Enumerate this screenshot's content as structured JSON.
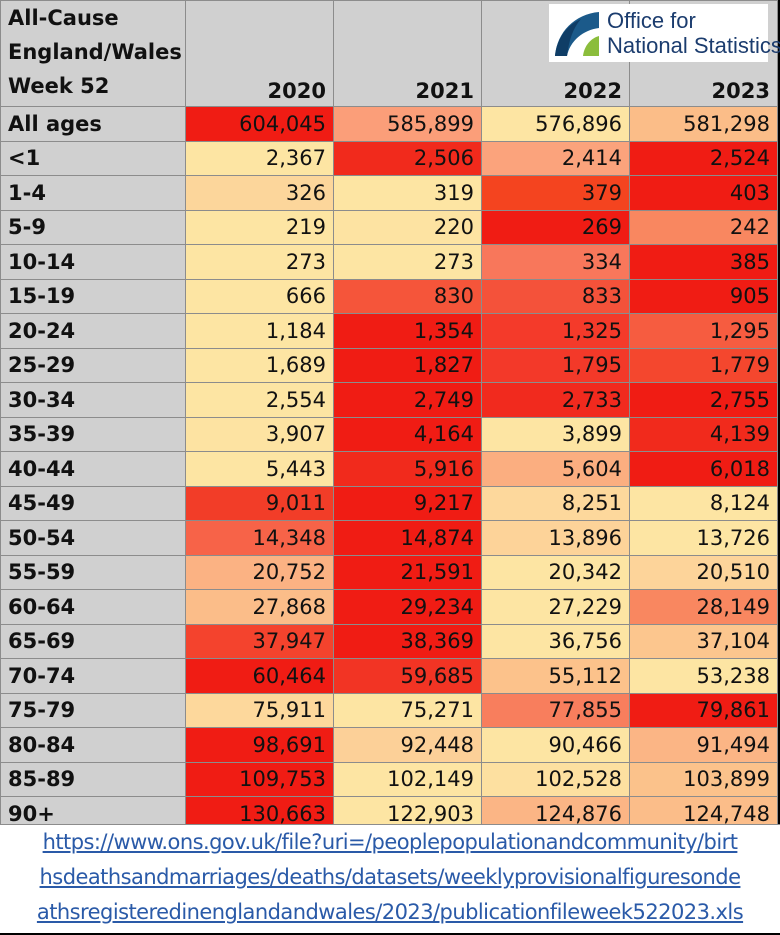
{
  "title_lines": [
    "All-Cause",
    "England/Wales",
    "Week 52"
  ],
  "logo": {
    "line1": "Office for",
    "line2": "National Statistics"
  },
  "chart_data": {
    "type": "table",
    "columns": [
      "2020",
      "2021",
      "2022",
      "2023"
    ],
    "rows": [
      {
        "label": "All ages",
        "values": [
          "604,045",
          "585,899",
          "576,896",
          "581,298"
        ],
        "colors": [
          "#f01c14",
          "#fb9e79",
          "#fde5a3",
          "#fbbd88"
        ]
      },
      {
        "label": "<1",
        "values": [
          "2,367",
          "2,506",
          "2,414",
          "2,524"
        ],
        "colors": [
          "#fde5a3",
          "#f12a1c",
          "#fba37c",
          "#f01c14"
        ]
      },
      {
        "label": "1-4",
        "values": [
          "326",
          "319",
          "379",
          "403"
        ],
        "colors": [
          "#fcd69b",
          "#fde5a3",
          "#f4441f",
          "#f01c14"
        ]
      },
      {
        "label": "5-9",
        "values": [
          "219",
          "220",
          "269",
          "242"
        ],
        "colors": [
          "#fde5a3",
          "#fde3a2",
          "#f01c14",
          "#f98760"
        ]
      },
      {
        "label": "10-14",
        "values": [
          "273",
          "273",
          "334",
          "385"
        ],
        "colors": [
          "#fde5a3",
          "#fde5a3",
          "#f8775b",
          "#f01c14"
        ]
      },
      {
        "label": "15-19",
        "values": [
          "666",
          "830",
          "833",
          "905"
        ],
        "colors": [
          "#fde5a3",
          "#f5553a",
          "#f4523a",
          "#f01c14"
        ]
      },
      {
        "label": "20-24",
        "values": [
          "1,184",
          "1,354",
          "1,325",
          "1,295"
        ],
        "colors": [
          "#fde5a3",
          "#f01c14",
          "#f43a2a",
          "#f65c40"
        ]
      },
      {
        "label": "25-29",
        "values": [
          "1,689",
          "1,827",
          "1,795",
          "1,779"
        ],
        "colors": [
          "#fde5a3",
          "#f01c14",
          "#f33929",
          "#f4472e"
        ]
      },
      {
        "label": "30-34",
        "values": [
          "2,554",
          "2,749",
          "2,733",
          "2,755"
        ],
        "colors": [
          "#fde5a3",
          "#f01c14",
          "#f12a1e",
          "#f01c14"
        ]
      },
      {
        "label": "35-39",
        "values": [
          "3,907",
          "4,164",
          "3,899",
          "4,139"
        ],
        "colors": [
          "#fde3a2",
          "#f01c14",
          "#fde5a3",
          "#f12a1c"
        ]
      },
      {
        "label": "40-44",
        "values": [
          "5,443",
          "5,916",
          "5,604",
          "6,018"
        ],
        "colors": [
          "#fde5a3",
          "#f12a1c",
          "#fbae80",
          "#f01c14"
        ]
      },
      {
        "label": "45-49",
        "values": [
          "9,011",
          "9,217",
          "8,251",
          "8,124"
        ],
        "colors": [
          "#f23d28",
          "#f01c14",
          "#fdd89c",
          "#fde5a3"
        ]
      },
      {
        "label": "50-54",
        "values": [
          "14,348",
          "14,874",
          "13,896",
          "13,726"
        ],
        "colors": [
          "#f76348",
          "#f01c14",
          "#fdd399",
          "#fde5a3"
        ]
      },
      {
        "label": "55-59",
        "values": [
          "20,752",
          "21,591",
          "20,342",
          "20,510"
        ],
        "colors": [
          "#fbb283",
          "#f01c14",
          "#fde5a3",
          "#fdd49a"
        ]
      },
      {
        "label": "60-64",
        "values": [
          "27,868",
          "29,234",
          "27,229",
          "28,149"
        ],
        "colors": [
          "#fbbd89",
          "#f01c14",
          "#fde5a3",
          "#f98760"
        ]
      },
      {
        "label": "65-69",
        "values": [
          "37,947",
          "38,369",
          "36,756",
          "37,104"
        ],
        "colors": [
          "#f4432d",
          "#f01c14",
          "#fde5a3",
          "#fcc68e"
        ]
      },
      {
        "label": "70-74",
        "values": [
          "60,464",
          "59,685",
          "55,112",
          "53,238"
        ],
        "colors": [
          "#f01c14",
          "#f23424",
          "#fcc28b",
          "#fde5a3"
        ]
      },
      {
        "label": "75-79",
        "values": [
          "75,911",
          "75,271",
          "77,855",
          "79,861"
        ],
        "colors": [
          "#fdd89c",
          "#fde5a3",
          "#f87e5d",
          "#f01c14"
        ]
      },
      {
        "label": "80-84",
        "values": [
          "98,691",
          "92,448",
          "90,466",
          "91,494"
        ],
        "colors": [
          "#f01c14",
          "#fcd098",
          "#fde5a3",
          "#fbb585"
        ]
      },
      {
        "label": "85-89",
        "values": [
          "109,753",
          "102,149",
          "102,528",
          "103,899"
        ],
        "colors": [
          "#f01c14",
          "#fde5a3",
          "#fde0a0",
          "#fbc28b"
        ]
      },
      {
        "label": "90+",
        "values": [
          "130,663",
          "122,903",
          "124,876",
          "124,748"
        ],
        "colors": [
          "#f01c14",
          "#fde5a3",
          "#fbb585",
          "#fbbd89"
        ]
      }
    ]
  },
  "source_link": [
    "https://www.ons.gov.uk/file?uri=/peoplepopulationandcommunity/birt",
    "hsdeathsandmarriages/deaths/datasets/weeklyprovisionalfiguresonde",
    "athsregisteredinenglandandwales/2023/publicationfileweek522023.xls"
  ],
  "colors": {
    "header_bg": "#d0d0d0",
    "link": "#2a5aa8",
    "logo_text": "#1b3c6e"
  }
}
